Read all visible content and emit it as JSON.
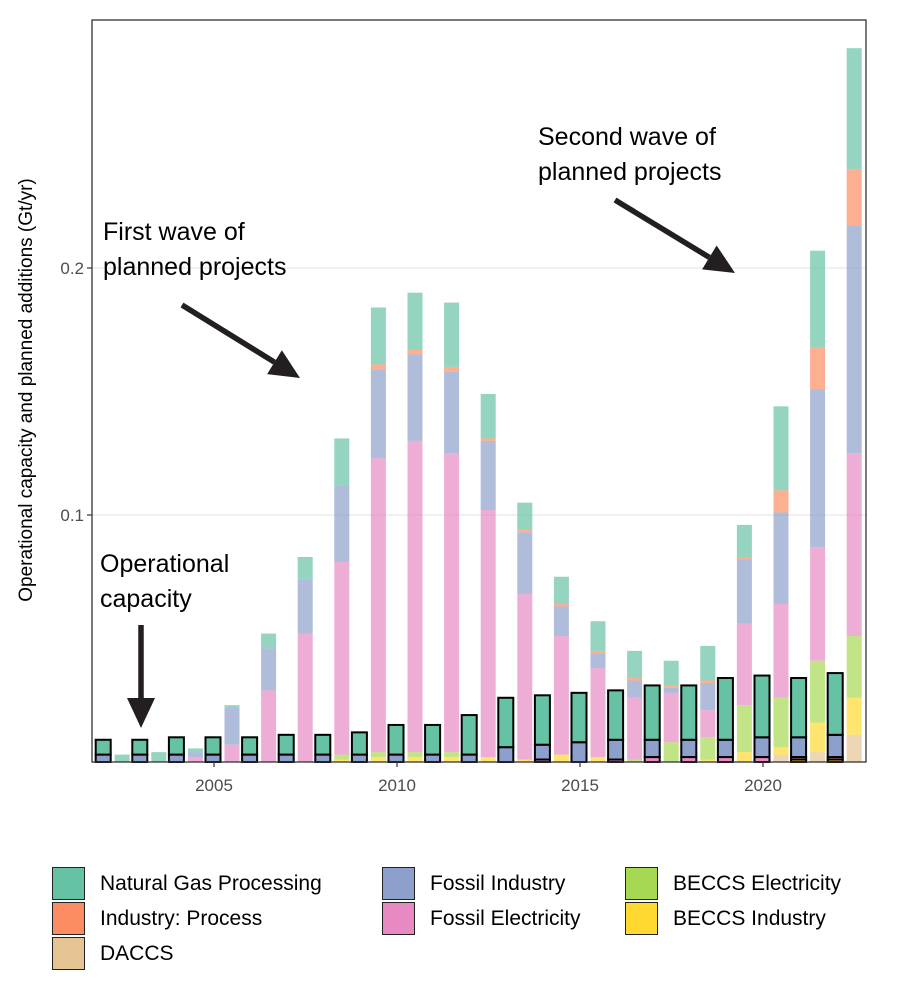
{
  "chart_data": {
    "type": "bar",
    "stacked": true,
    "grouped": true,
    "title": "",
    "xlabel": "",
    "ylabel": "Operational capacity and planned additions (Gt/yr)",
    "ylim": [
      0,
      0.29
    ],
    "xlim": [
      2001.7,
      2022.8
    ],
    "yticks": [
      0.1,
      0.2
    ],
    "ytick_labels": [
      "0.1",
      "0.2"
    ],
    "xticks": [
      2005,
      2010,
      2015,
      2020
    ],
    "xtick_labels": [
      "2005",
      "2010",
      "2015",
      "2020"
    ],
    "grid": "horizontal major",
    "legend_position": "bottom",
    "categories": [
      "Natural Gas Processing",
      "Industry: Process",
      "DACCS",
      "Fossil Industry",
      "Fossil Electricity",
      "BECCS Electricity",
      "BECCS Industry"
    ],
    "colors": {
      "Natural Gas Processing": "#66c2a5",
      "Industry: Process": "#fc8d62",
      "DACCS": "#e5c494",
      "Fossil Industry": "#8da0cb",
      "Fossil Electricity": "#e78ac3",
      "BECCS Electricity": "#a6d854",
      "BECCS Industry": "#ffd92f"
    },
    "stack_order": [
      "DACCS",
      "BECCS Industry",
      "BECCS Electricity",
      "Fossil Electricity",
      "Fossil Industry",
      "Industry: Process",
      "Natural Gas Processing"
    ],
    "years": [
      2002,
      2003,
      2004,
      2005,
      2006,
      2007,
      2008,
      2009,
      2010,
      2011,
      2012,
      2013,
      2014,
      2015,
      2016,
      2017,
      2018,
      2019,
      2020,
      2021,
      2022
    ],
    "series_groups": [
      {
        "name": "Operational capacity",
        "style": "solid, black outline",
        "series": [
          {
            "name": "DACCS",
            "values": [
              0,
              0,
              0,
              0,
              0,
              0,
              0,
              0,
              0,
              0,
              0,
              0,
              0,
              0,
              0,
              0,
              0,
              0,
              0,
              0,
              0
            ]
          },
          {
            "name": "BECCS Industry",
            "values": [
              0,
              0,
              0,
              0,
              0,
              0,
              0,
              0,
              0,
              0,
              0,
              0,
              0,
              0,
              0,
              0,
              0,
              0,
              0,
              0.001,
              0.001
            ]
          },
          {
            "name": "BECCS Electricity",
            "values": [
              0,
              0,
              0,
              0,
              0,
              0,
              0,
              0,
              0,
              0,
              0,
              0,
              0,
              0,
              0,
              0,
              0,
              0,
              0,
              0,
              0
            ]
          },
          {
            "name": "Fossil Electricity",
            "values": [
              0,
              0,
              0,
              0,
              0,
              0,
              0,
              0,
              0,
              0,
              0,
              0,
              0.001,
              0,
              0.001,
              0.002,
              0.002,
              0.002,
              0.002,
              0.001,
              0.001
            ]
          },
          {
            "name": "Fossil Industry",
            "values": [
              0.003,
              0.003,
              0.003,
              0.003,
              0.003,
              0.003,
              0.003,
              0.003,
              0.003,
              0.003,
              0.003,
              0.006,
              0.006,
              0.008,
              0.008,
              0.007,
              0.007,
              0.007,
              0.008,
              0.008,
              0.009
            ]
          },
          {
            "name": "Industry: Process",
            "values": [
              0,
              0,
              0,
              0,
              0,
              0,
              0,
              0,
              0,
              0,
              0,
              0,
              0,
              0,
              0,
              0,
              0,
              0,
              0,
              0,
              0
            ]
          },
          {
            "name": "Natural Gas Processing",
            "values": [
              0.006,
              0.006,
              0.007,
              0.007,
              0.007,
              0.008,
              0.008,
              0.009,
              0.012,
              0.012,
              0.016,
              0.02,
              0.02,
              0.02,
              0.02,
              0.022,
              0.022,
              0.025,
              0.025,
              0.024,
              0.025
            ]
          }
        ]
      },
      {
        "name": "Planned additions",
        "style": "translucent",
        "series": [
          {
            "name": "DACCS",
            "values": [
              0,
              0,
              0,
              0,
              0,
              0,
              0,
              0,
              0,
              0,
              0,
              0,
              0,
              0,
              0,
              0,
              0,
              0,
              0.003,
              0.004,
              0.011
            ]
          },
          {
            "name": "BECCS Industry",
            "values": [
              0,
              0,
              0,
              0,
              0,
              0,
              0.001,
              0.002,
              0.002,
              0.002,
              0.002,
              0.001,
              0.003,
              0.002,
              0,
              0,
              0.001,
              0.004,
              0.003,
              0.012,
              0.015
            ]
          },
          {
            "name": "BECCS Electricity",
            "values": [
              0,
              0,
              0,
              0,
              0,
              0,
              0.002,
              0.002,
              0.002,
              0.002,
              0,
              0,
              0,
              0,
              0.001,
              0.008,
              0.009,
              0.019,
              0.02,
              0.025,
              0.025
            ]
          },
          {
            "name": "Fossil Electricity",
            "values": [
              0,
              0,
              0.002,
              0.007,
              0.029,
              0.052,
              0.078,
              0.119,
              0.126,
              0.121,
              0.1,
              0.067,
              0.048,
              0.036,
              0.025,
              0.02,
              0.011,
              0.033,
              0.038,
              0.046,
              0.074
            ]
          },
          {
            "name": "Fossil Industry",
            "values": [
              0,
              0,
              0.002,
              0.015,
              0.017,
              0.022,
              0.031,
              0.036,
              0.035,
              0.033,
              0.028,
              0.025,
              0.012,
              0.006,
              0.007,
              0.002,
              0.011,
              0.026,
              0.037,
              0.064,
              0.092
            ]
          },
          {
            "name": "Industry: Process",
            "values": [
              0,
              0,
              0,
              0,
              0,
              0,
              0,
              0.002,
              0.002,
              0.002,
              0.001,
              0.001,
              0.001,
              0.001,
              0.001,
              0.001,
              0.001,
              0.001,
              0.009,
              0.017,
              0.023
            ]
          },
          {
            "name": "Natural Gas Processing",
            "values": [
              0.003,
              0.004,
              0.0015,
              0.001,
              0.006,
              0.009,
              0.019,
              0.023,
              0.023,
              0.026,
              0.018,
              0.011,
              0.011,
              0.012,
              0.011,
              0.01,
              0.014,
              0.013,
              0.034,
              0.039,
              0.049
            ]
          }
        ]
      }
    ],
    "annotations": [
      {
        "lines": [
          "Operational",
          "capacity"
        ],
        "points_to": {
          "year": 2003,
          "value": 0.015
        }
      },
      {
        "lines": [
          "First wave of",
          "planned projects"
        ],
        "points_to": {
          "year": 2010,
          "value": 0.155
        }
      },
      {
        "lines": [
          "Second wave of",
          "planned projects"
        ],
        "points_to": {
          "year": 2020,
          "value": 0.2
        }
      }
    ]
  },
  "legend": {
    "items": [
      {
        "label": "Natural Gas Processing",
        "color": "#66c2a5"
      },
      {
        "label": "Industry: Process",
        "color": "#fc8d62"
      },
      {
        "label": "DACCS",
        "color": "#e5c494"
      },
      {
        "label": "Fossil Industry",
        "color": "#8da0cb"
      },
      {
        "label": "Fossil Electricity",
        "color": "#e78ac3"
      },
      {
        "label": "BECCS Electricity",
        "color": "#a6d854"
      },
      {
        "label": "BECCS Industry",
        "color": "#ffd92f"
      }
    ]
  }
}
